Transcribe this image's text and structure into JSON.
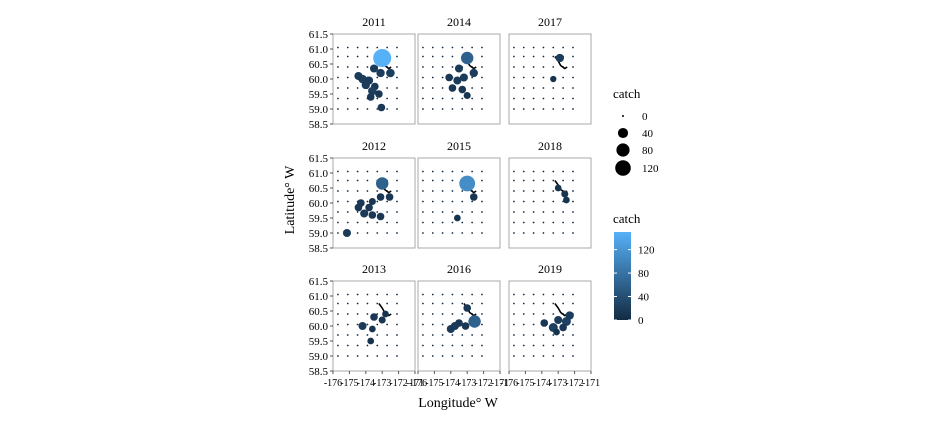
{
  "chart_data": {
    "type": "scatter",
    "facet_by": "year",
    "xlabel": "Longitude° W",
    "ylabel": "Latitude° W",
    "xlim": [
      -176,
      -171
    ],
    "ylim": [
      58.5,
      61.5
    ],
    "x_ticks": [
      "-176",
      "-175",
      "-174",
      "-173",
      "-172",
      "-171"
    ],
    "y_ticks": [
      "58.5",
      "59.0",
      "59.5",
      "60.0",
      "60.5",
      "61.0",
      "61.5"
    ],
    "grid": false,
    "background": "#ffffff",
    "legends": {
      "size": {
        "title": "catch",
        "labels": [
          "0",
          "40",
          "80",
          "120"
        ],
        "values": [
          0,
          40,
          80,
          120
        ]
      },
      "color": {
        "title": "catch",
        "labels": [
          "0",
          "40",
          "80",
          "120"
        ],
        "values": [
          0,
          40,
          80,
          120
        ],
        "min": 0,
        "max": 150,
        "color_low": "#132b43",
        "color_high": "#56b1f7"
      }
    },
    "station_grid": {
      "lon": [
        -175.7,
        -175.1,
        -174.5,
        -173.9,
        -173.3,
        -172.7,
        -172.1
      ],
      "lat": [
        59.0,
        59.35,
        59.7,
        60.05,
        60.4,
        60.75,
        61.05
      ]
    },
    "panels": [
      {
        "year": "2011",
        "stations": [
          {
            "lon": -173.0,
            "lat": 60.7,
            "catch": 150
          },
          {
            "lon": -172.5,
            "lat": 60.2,
            "catch": 22
          },
          {
            "lon": -173.5,
            "lat": 60.35,
            "catch": 18
          },
          {
            "lon": -173.1,
            "lat": 60.2,
            "catch": 20
          },
          {
            "lon": -174.2,
            "lat": 60.0,
            "catch": 22
          },
          {
            "lon": -174.45,
            "lat": 60.1,
            "catch": 18
          },
          {
            "lon": -173.8,
            "lat": 59.95,
            "catch": 18
          },
          {
            "lon": -174.0,
            "lat": 59.8,
            "catch": 20
          },
          {
            "lon": -173.45,
            "lat": 59.75,
            "catch": 15
          },
          {
            "lon": -173.6,
            "lat": 59.6,
            "catch": 22
          },
          {
            "lon": -173.2,
            "lat": 59.5,
            "catch": 15
          },
          {
            "lon": -173.7,
            "lat": 59.4,
            "catch": 15
          },
          {
            "lon": -173.05,
            "lat": 59.05,
            "catch": 15
          }
        ]
      },
      {
        "year": "2012",
        "stations": [
          {
            "lon": -173.0,
            "lat": 60.65,
            "catch": 60
          },
          {
            "lon": -172.55,
            "lat": 60.2,
            "catch": 15
          },
          {
            "lon": -173.1,
            "lat": 60.2,
            "catch": 15
          },
          {
            "lon": -173.6,
            "lat": 60.05,
            "catch": 12
          },
          {
            "lon": -174.3,
            "lat": 60.0,
            "catch": 15
          },
          {
            "lon": -174.45,
            "lat": 59.85,
            "catch": 15
          },
          {
            "lon": -173.8,
            "lat": 59.85,
            "catch": 15
          },
          {
            "lon": -174.1,
            "lat": 59.65,
            "catch": 18
          },
          {
            "lon": -173.6,
            "lat": 59.6,
            "catch": 15
          },
          {
            "lon": -173.1,
            "lat": 59.55,
            "catch": 15
          },
          {
            "lon": -175.15,
            "lat": 59.0,
            "catch": 18
          }
        ]
      },
      {
        "year": "2013",
        "stations": [
          {
            "lon": -174.2,
            "lat": 60.0,
            "catch": 18
          },
          {
            "lon": -173.5,
            "lat": 60.3,
            "catch": 15
          },
          {
            "lon": -173.0,
            "lat": 60.2,
            "catch": 12
          },
          {
            "lon": -173.6,
            "lat": 59.9,
            "catch": 10
          },
          {
            "lon": -173.7,
            "lat": 59.5,
            "catch": 10
          },
          {
            "lon": -172.8,
            "lat": 60.4,
            "catch": 10
          }
        ]
      },
      {
        "year": "2014",
        "stations": [
          {
            "lon": -173.0,
            "lat": 60.7,
            "catch": 60
          },
          {
            "lon": -172.6,
            "lat": 60.2,
            "catch": 20
          },
          {
            "lon": -173.5,
            "lat": 60.35,
            "catch": 18
          },
          {
            "lon": -173.2,
            "lat": 60.05,
            "catch": 18
          },
          {
            "lon": -173.6,
            "lat": 59.95,
            "catch": 18
          },
          {
            "lon": -174.1,
            "lat": 60.05,
            "catch": 15
          },
          {
            "lon": -173.9,
            "lat": 59.7,
            "catch": 15
          },
          {
            "lon": -173.3,
            "lat": 59.65,
            "catch": 15
          },
          {
            "lon": -173.0,
            "lat": 59.45,
            "catch": 12
          }
        ]
      },
      {
        "year": "2015",
        "stations": [
          {
            "lon": -173.0,
            "lat": 60.65,
            "catch": 110
          },
          {
            "lon": -172.6,
            "lat": 60.2,
            "catch": 15
          },
          {
            "lon": -173.6,
            "lat": 59.5,
            "catch": 10
          }
        ]
      },
      {
        "year": "2016",
        "stations": [
          {
            "lon": -173.0,
            "lat": 60.6,
            "catch": 15
          },
          {
            "lon": -172.55,
            "lat": 60.15,
            "catch": 60
          },
          {
            "lon": -173.5,
            "lat": 60.1,
            "catch": 15
          },
          {
            "lon": -173.1,
            "lat": 60.0,
            "catch": 15
          },
          {
            "lon": -174.0,
            "lat": 59.9,
            "catch": 18
          },
          {
            "lon": -173.75,
            "lat": 60.0,
            "catch": 18
          }
        ]
      },
      {
        "year": "2017",
        "stations": [
          {
            "lon": -172.9,
            "lat": 60.7,
            "catch": 20
          },
          {
            "lon": -173.3,
            "lat": 60.0,
            "catch": 8
          }
        ]
      },
      {
        "year": "2018",
        "stations": [
          {
            "lon": -173.0,
            "lat": 60.5,
            "catch": 10
          },
          {
            "lon": -172.6,
            "lat": 60.3,
            "catch": 12
          },
          {
            "lon": -172.5,
            "lat": 60.1,
            "catch": 10
          }
        ]
      },
      {
        "year": "2019",
        "stations": [
          {
            "lon": -173.0,
            "lat": 60.2,
            "catch": 18
          },
          {
            "lon": -172.5,
            "lat": 60.15,
            "catch": 25
          },
          {
            "lon": -173.3,
            "lat": 59.95,
            "catch": 25
          },
          {
            "lon": -173.85,
            "lat": 60.1,
            "catch": 15
          },
          {
            "lon": -172.7,
            "lat": 59.95,
            "catch": 15
          },
          {
            "lon": -172.3,
            "lat": 60.35,
            "catch": 20
          },
          {
            "lon": -173.1,
            "lat": 59.8,
            "catch": 10
          }
        ]
      }
    ]
  }
}
